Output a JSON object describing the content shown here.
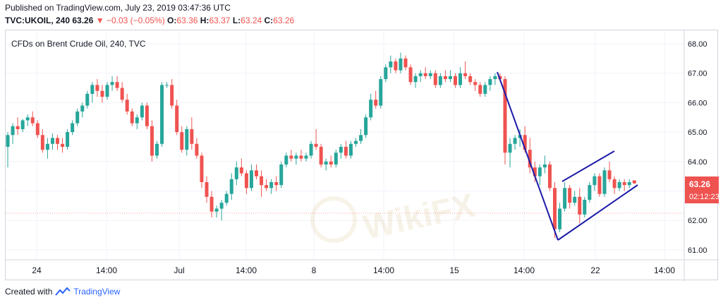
{
  "header": {
    "published": "Published on TradingView.com, July 23, 2019 03:47:36 UTC",
    "symbol": "TVC:UKOIL, 240",
    "last": "63.26",
    "arrow": "▼",
    "change": "−0.03 (−0.05%)",
    "o_label": "O:",
    "o_value": "63.36",
    "h_label": "H:",
    "h_value": "63.37",
    "l_label": "L:",
    "l_value": "63.24",
    "c_label": "C:",
    "c_value": "63.26"
  },
  "footer": {
    "created_with": "Created with",
    "brand": "TradingView",
    "brand_icon": "tradingview-logo-icon"
  },
  "watermark": "WikiFX",
  "colors": {
    "up": "#26a69a",
    "down": "#ef5350",
    "pattern": "#1b1ba8",
    "price_label": "#ef5350",
    "grid": "#f0f3fa"
  },
  "chart_data": {
    "type": "candlestick",
    "title": "CFDs on Brent Crude Oil, 240, TVC",
    "ylim": [
      60.7,
      68.25
    ],
    "y_ticks": [
      "68.00",
      "67.00",
      "66.00",
      "65.00",
      "64.00",
      "63.00",
      "62.00",
      "61.00"
    ],
    "x_ticks": [
      "24",
      "14:00",
      "Jul",
      "14:00",
      "8",
      "14:00",
      "15",
      "14:00",
      "22",
      "14:00"
    ],
    "grid": true,
    "last_price": "63.26",
    "countdown": "02:12:23",
    "candles": [
      [
        64.5,
        65.0,
        63.8,
        64.9
      ],
      [
        64.9,
        65.3,
        64.6,
        65.2
      ],
      [
        65.2,
        65.5,
        64.9,
        65.1
      ],
      [
        65.1,
        65.45,
        65.0,
        65.4
      ],
      [
        65.4,
        65.6,
        65.2,
        65.5
      ],
      [
        65.5,
        65.7,
        65.2,
        65.3
      ],
      [
        65.3,
        65.4,
        64.8,
        64.9
      ],
      [
        64.9,
        65.1,
        64.3,
        64.4
      ],
      [
        64.4,
        64.8,
        64.1,
        64.6
      ],
      [
        64.6,
        64.95,
        64.4,
        64.8
      ],
      [
        64.8,
        64.9,
        64.4,
        64.6
      ],
      [
        64.6,
        64.8,
        64.3,
        64.5
      ],
      [
        64.5,
        65.1,
        64.4,
        65.0
      ],
      [
        65.0,
        65.4,
        64.9,
        65.3
      ],
      [
        65.3,
        65.8,
        65.2,
        65.7
      ],
      [
        65.7,
        66.0,
        65.5,
        65.9
      ],
      [
        65.9,
        66.4,
        65.8,
        66.3
      ],
      [
        66.3,
        66.7,
        66.0,
        66.6
      ],
      [
        66.6,
        66.8,
        66.2,
        66.4
      ],
      [
        66.4,
        66.6,
        66.0,
        66.2
      ],
      [
        66.2,
        66.7,
        66.1,
        66.6
      ],
      [
        66.6,
        66.9,
        66.4,
        66.7
      ],
      [
        66.7,
        66.9,
        66.4,
        66.5
      ],
      [
        66.5,
        66.7,
        66.0,
        66.1
      ],
      [
        66.1,
        66.3,
        65.6,
        65.7
      ],
      [
        65.7,
        65.8,
        65.2,
        65.3
      ],
      [
        65.3,
        65.6,
        65.1,
        65.5
      ],
      [
        65.5,
        66.0,
        65.4,
        65.9
      ],
      [
        65.9,
        66.0,
        65.1,
        65.2
      ],
      [
        65.2,
        65.4,
        64.0,
        64.2
      ],
      [
        64.2,
        64.7,
        64.1,
        64.6
      ],
      [
        64.6,
        66.7,
        64.5,
        66.6
      ],
      [
        66.6,
        66.7,
        66.5,
        66.6
      ],
      [
        66.6,
        66.8,
        65.8,
        65.9
      ],
      [
        65.9,
        66.1,
        64.9,
        65.0
      ],
      [
        65.0,
        65.2,
        64.3,
        64.4
      ],
      [
        64.4,
        65.2,
        64.2,
        65.1
      ],
      [
        65.1,
        65.5,
        64.4,
        64.6
      ],
      [
        64.6,
        64.8,
        64.1,
        64.2
      ],
      [
        64.2,
        64.3,
        63.1,
        63.3
      ],
      [
        63.3,
        63.5,
        62.6,
        62.8
      ],
      [
        62.8,
        63.0,
        62.1,
        62.3
      ],
      [
        62.3,
        62.5,
        62.1,
        62.4
      ],
      [
        62.4,
        62.7,
        62.0,
        62.6
      ],
      [
        62.6,
        63.0,
        62.5,
        62.9
      ],
      [
        62.9,
        63.6,
        62.7,
        63.4
      ],
      [
        63.4,
        64.0,
        63.2,
        63.8
      ],
      [
        63.8,
        64.1,
        63.5,
        63.6
      ],
      [
        63.6,
        63.7,
        62.9,
        63.1
      ],
      [
        63.1,
        63.9,
        63.0,
        63.7
      ],
      [
        63.7,
        63.9,
        63.4,
        63.5
      ],
      [
        63.5,
        63.7,
        62.8,
        63.2
      ],
      [
        63.2,
        63.4,
        63.0,
        63.1
      ],
      [
        63.1,
        63.4,
        62.9,
        63.3
      ],
      [
        63.3,
        63.5,
        63.0,
        63.2
      ],
      [
        63.2,
        64.0,
        63.1,
        63.9
      ],
      [
        63.9,
        64.3,
        63.8,
        64.2
      ],
      [
        64.2,
        64.4,
        64.0,
        64.1
      ],
      [
        64.1,
        64.3,
        63.9,
        64.2
      ],
      [
        64.2,
        64.4,
        64.0,
        64.1
      ],
      [
        64.1,
        64.3,
        64.0,
        64.2
      ],
      [
        64.2,
        64.7,
        64.1,
        64.6
      ],
      [
        64.6,
        65.1,
        64.4,
        64.5
      ],
      [
        64.5,
        64.6,
        63.8,
        63.9
      ],
      [
        63.9,
        64.1,
        63.7,
        64.0
      ],
      [
        64.0,
        64.2,
        63.8,
        63.9
      ],
      [
        63.9,
        64.4,
        63.8,
        64.3
      ],
      [
        64.3,
        64.6,
        64.1,
        64.5
      ],
      [
        64.5,
        64.7,
        64.1,
        64.2
      ],
      [
        64.2,
        64.7,
        64.1,
        64.6
      ],
      [
        64.6,
        64.8,
        64.5,
        64.7
      ],
      [
        64.7,
        65.1,
        64.6,
        64.9
      ],
      [
        64.9,
        65.6,
        64.8,
        65.5
      ],
      [
        65.5,
        66.3,
        65.4,
        66.1
      ],
      [
        66.1,
        66.4,
        65.8,
        65.9
      ],
      [
        65.9,
        66.9,
        65.8,
        66.8
      ],
      [
        66.8,
        67.3,
        66.7,
        67.2
      ],
      [
        67.2,
        67.6,
        67.0,
        67.4
      ],
      [
        67.4,
        67.5,
        67.0,
        67.1
      ],
      [
        67.1,
        67.7,
        67.0,
        67.5
      ],
      [
        67.5,
        67.6,
        67.1,
        67.2
      ],
      [
        67.2,
        67.3,
        66.6,
        66.7
      ],
      [
        66.7,
        67.0,
        66.5,
        66.9
      ],
      [
        66.9,
        67.1,
        66.7,
        67.0
      ],
      [
        67.0,
        67.2,
        66.8,
        66.9
      ],
      [
        66.9,
        67.1,
        66.8,
        67.0
      ],
      [
        67.0,
        67.1,
        66.5,
        66.6
      ],
      [
        66.6,
        67.0,
        66.5,
        66.9
      ],
      [
        66.9,
        67.1,
        66.7,
        66.8
      ],
      [
        66.8,
        67.1,
        66.7,
        66.9
      ],
      [
        66.9,
        67.0,
        66.5,
        66.6
      ],
      [
        66.6,
        67.2,
        66.5,
        67.0
      ],
      [
        67.0,
        67.4,
        66.8,
        66.9
      ],
      [
        66.9,
        67.0,
        66.6,
        66.7
      ],
      [
        66.7,
        66.8,
        66.4,
        66.6
      ],
      [
        66.6,
        66.7,
        66.2,
        66.3
      ],
      [
        66.3,
        66.7,
        66.2,
        66.6
      ],
      [
        66.6,
        66.9,
        66.4,
        66.8
      ],
      [
        66.8,
        67.0,
        66.6,
        66.9
      ],
      [
        66.9,
        67.0,
        66.7,
        66.8
      ],
      [
        66.8,
        66.9,
        63.9,
        64.3
      ],
      [
        64.3,
        64.8,
        63.8,
        64.6
      ],
      [
        64.6,
        64.9,
        64.4,
        64.8
      ],
      [
        64.8,
        65.1,
        64.5,
        64.9
      ],
      [
        64.9,
        65.2,
        64.3,
        64.4
      ],
      [
        64.4,
        64.8,
        63.6,
        63.8
      ],
      [
        63.8,
        64.0,
        63.3,
        63.5
      ],
      [
        63.5,
        63.9,
        63.2,
        63.8
      ],
      [
        63.8,
        64.2,
        63.6,
        63.9
      ],
      [
        63.9,
        64.0,
        63.0,
        63.1
      ],
      [
        63.1,
        63.3,
        61.4,
        61.7
      ],
      [
        61.7,
        62.6,
        61.6,
        62.4
      ],
      [
        62.4,
        63.3,
        62.3,
        63.1
      ],
      [
        63.1,
        63.2,
        62.4,
        62.6
      ],
      [
        62.6,
        63.0,
        62.5,
        62.8
      ],
      [
        62.8,
        63.1,
        61.9,
        62.2
      ],
      [
        62.2,
        62.8,
        62.1,
        62.7
      ],
      [
        62.7,
        63.3,
        62.6,
        63.2
      ],
      [
        63.2,
        63.6,
        63.0,
        63.5
      ],
      [
        63.5,
        63.6,
        62.8,
        62.9
      ],
      [
        62.9,
        63.8,
        62.8,
        63.7
      ],
      [
        63.7,
        64.0,
        63.3,
        63.4
      ],
      [
        63.4,
        63.5,
        62.9,
        63.1
      ],
      [
        63.1,
        63.4,
        63.0,
        63.3
      ],
      [
        63.3,
        63.4,
        63.0,
        63.2
      ],
      [
        63.2,
        63.4,
        63.1,
        63.3
      ],
      [
        63.36,
        63.37,
        63.24,
        63.26
      ]
    ],
    "annotations": [
      {
        "type": "line",
        "label": "flagpole",
        "points": [
          [
            "15 (16:00)",
            67.05
          ],
          [
            "19 (20:00)",
            61.3
          ]
        ]
      },
      {
        "type": "line",
        "label": "flag-upper",
        "points": [
          [
            "19 (12:00)",
            63.1
          ],
          [
            "22 (16:00)",
            64.3
          ]
        ]
      },
      {
        "type": "line",
        "label": "flag-lower",
        "points": [
          [
            "19 (20:00)",
            61.3
          ],
          [
            "23 (04:00)",
            63.1
          ]
        ]
      }
    ]
  }
}
